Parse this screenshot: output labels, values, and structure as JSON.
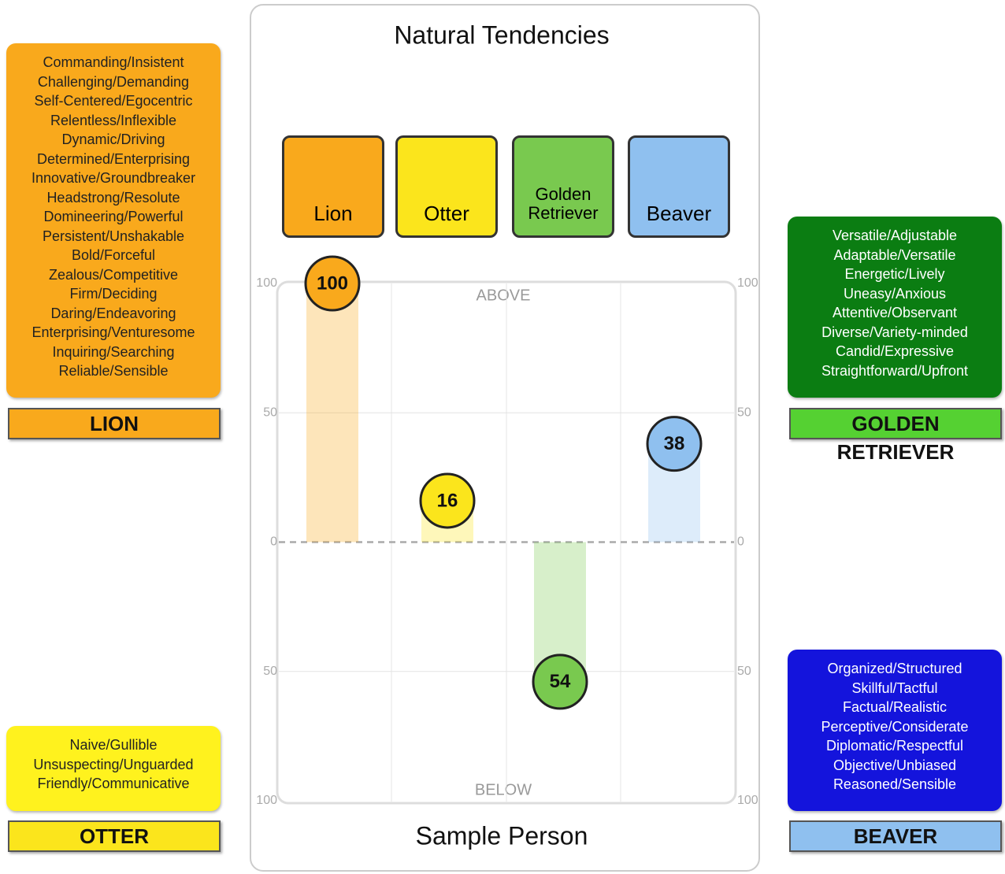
{
  "panels": [
    {
      "label": "LION",
      "traits": [
        "Commanding/Insistent",
        "Challenging/Demanding",
        "Self-Centered/Egocentric",
        "Relentless/Inflexible",
        "Dynamic/Driving",
        "Determined/Enterprising",
        "Innovative/Groundbreaker",
        "Headstrong/Resolute",
        "Domineering/Powerful",
        "Persistent/Unshakable",
        "Bold/Forceful",
        "Zealous/Competitive",
        "Firm/Deciding",
        "Daring/Endeavoring",
        "Enterprising/Venturesome",
        "Inquiring/Searching",
        "Reliable/Sensible"
      ]
    },
    {
      "label": "OTTER",
      "traits": [
        "Naive/Gullible",
        "Unsuspecting/Unguarded",
        "Friendly/Communicative"
      ]
    },
    {
      "label": "GOLDEN RETRIEVER",
      "traits": [
        "Versatile/Adjustable",
        "Adaptable/Versatile",
        "Energetic/Lively",
        "Uneasy/Anxious",
        "Attentive/Observant",
        "Diverse/Variety-minded",
        "Candid/Expressive",
        "Straightforward/Upfront"
      ]
    },
    {
      "label": "BEAVER",
      "traits": [
        "Organized/Structured",
        "Skillful/Tactful",
        "Factual/Realistic",
        "Perceptive/Considerate",
        "Diplomatic/Respectful",
        "Objective/Unbiased",
        "Reasoned/Sensible"
      ]
    }
  ],
  "chart_data": {
    "type": "bar",
    "title": "Natural Tendencies",
    "subtitle": "Sample Person",
    "annotations": [
      "ABOVE",
      "BELOW"
    ],
    "categories": [
      "Lion",
      "Otter",
      "Golden Retriever",
      "Beaver"
    ],
    "values": [
      100,
      16,
      -54,
      38
    ],
    "value_labels": [
      "100",
      "16",
      "54",
      "38"
    ],
    "colors": [
      "#f9a91c",
      "#fbe51c",
      "#79c94f",
      "#8fc0ef"
    ],
    "ylim": [
      -100,
      100
    ],
    "yticks": [
      {
        "value": -100,
        "label": "100"
      },
      {
        "value": -50,
        "label": "50"
      },
      0,
      50,
      100
    ],
    "grid": true
  }
}
